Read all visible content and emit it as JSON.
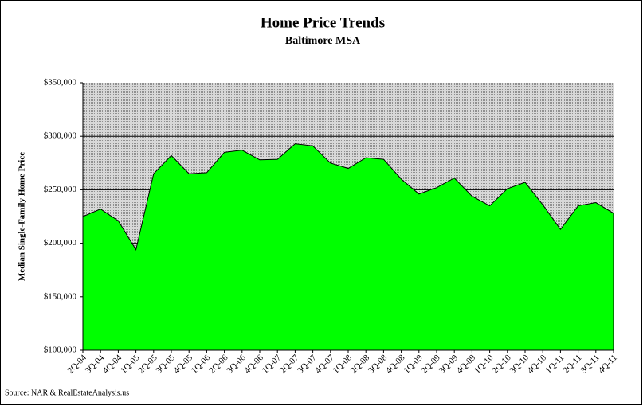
{
  "chart_data": {
    "type": "area",
    "title": "Home Price Trends",
    "subtitle": "Baltimore MSA",
    "y_label": "Median Single-Family Home Price",
    "source": "Source: NAR & RealEstateAnalysis.us",
    "categories": [
      "2Q-04",
      "3Q-04",
      "4Q-04",
      "1Q-05",
      "2Q-05",
      "3Q-05",
      "4Q-05",
      "1Q-06",
      "2Q-06",
      "3Q-06",
      "4Q-06",
      "1Q-07",
      "2Q-07",
      "3Q-07",
      "4Q-07",
      "1Q-08",
      "2Q-08",
      "3Q-08",
      "4Q-08",
      "1Q-09",
      "2Q-09",
      "3Q-09",
      "4Q-09",
      "1Q-10",
      "2Q-10",
      "3Q-10",
      "4Q-10",
      "1Q-11",
      "2Q-11",
      "3Q-11",
      "4Q-11"
    ],
    "values": [
      225000,
      232000,
      221000,
      194000,
      265000,
      282000,
      265000,
      266000,
      285000,
      287000,
      278000,
      278500,
      293000,
      291000,
      275000,
      270000,
      280000,
      278500,
      260000,
      246000,
      252000,
      261000,
      244000,
      235000,
      251000,
      257000,
      236000,
      213000,
      235000,
      238000,
      228000
    ],
    "color": "#00ff00",
    "ylim": [
      100000,
      350000
    ],
    "yticks": [
      {
        "value": 100000,
        "label": "$100,000"
      },
      {
        "value": 150000,
        "label": "$150,000"
      },
      {
        "value": 200000,
        "label": "$200,000"
      },
      {
        "value": 250000,
        "label": "$250,000"
      },
      {
        "value": 300000,
        "label": "$300,000"
      },
      {
        "value": 350000,
        "label": "$350,000"
      }
    ],
    "grid": true
  }
}
